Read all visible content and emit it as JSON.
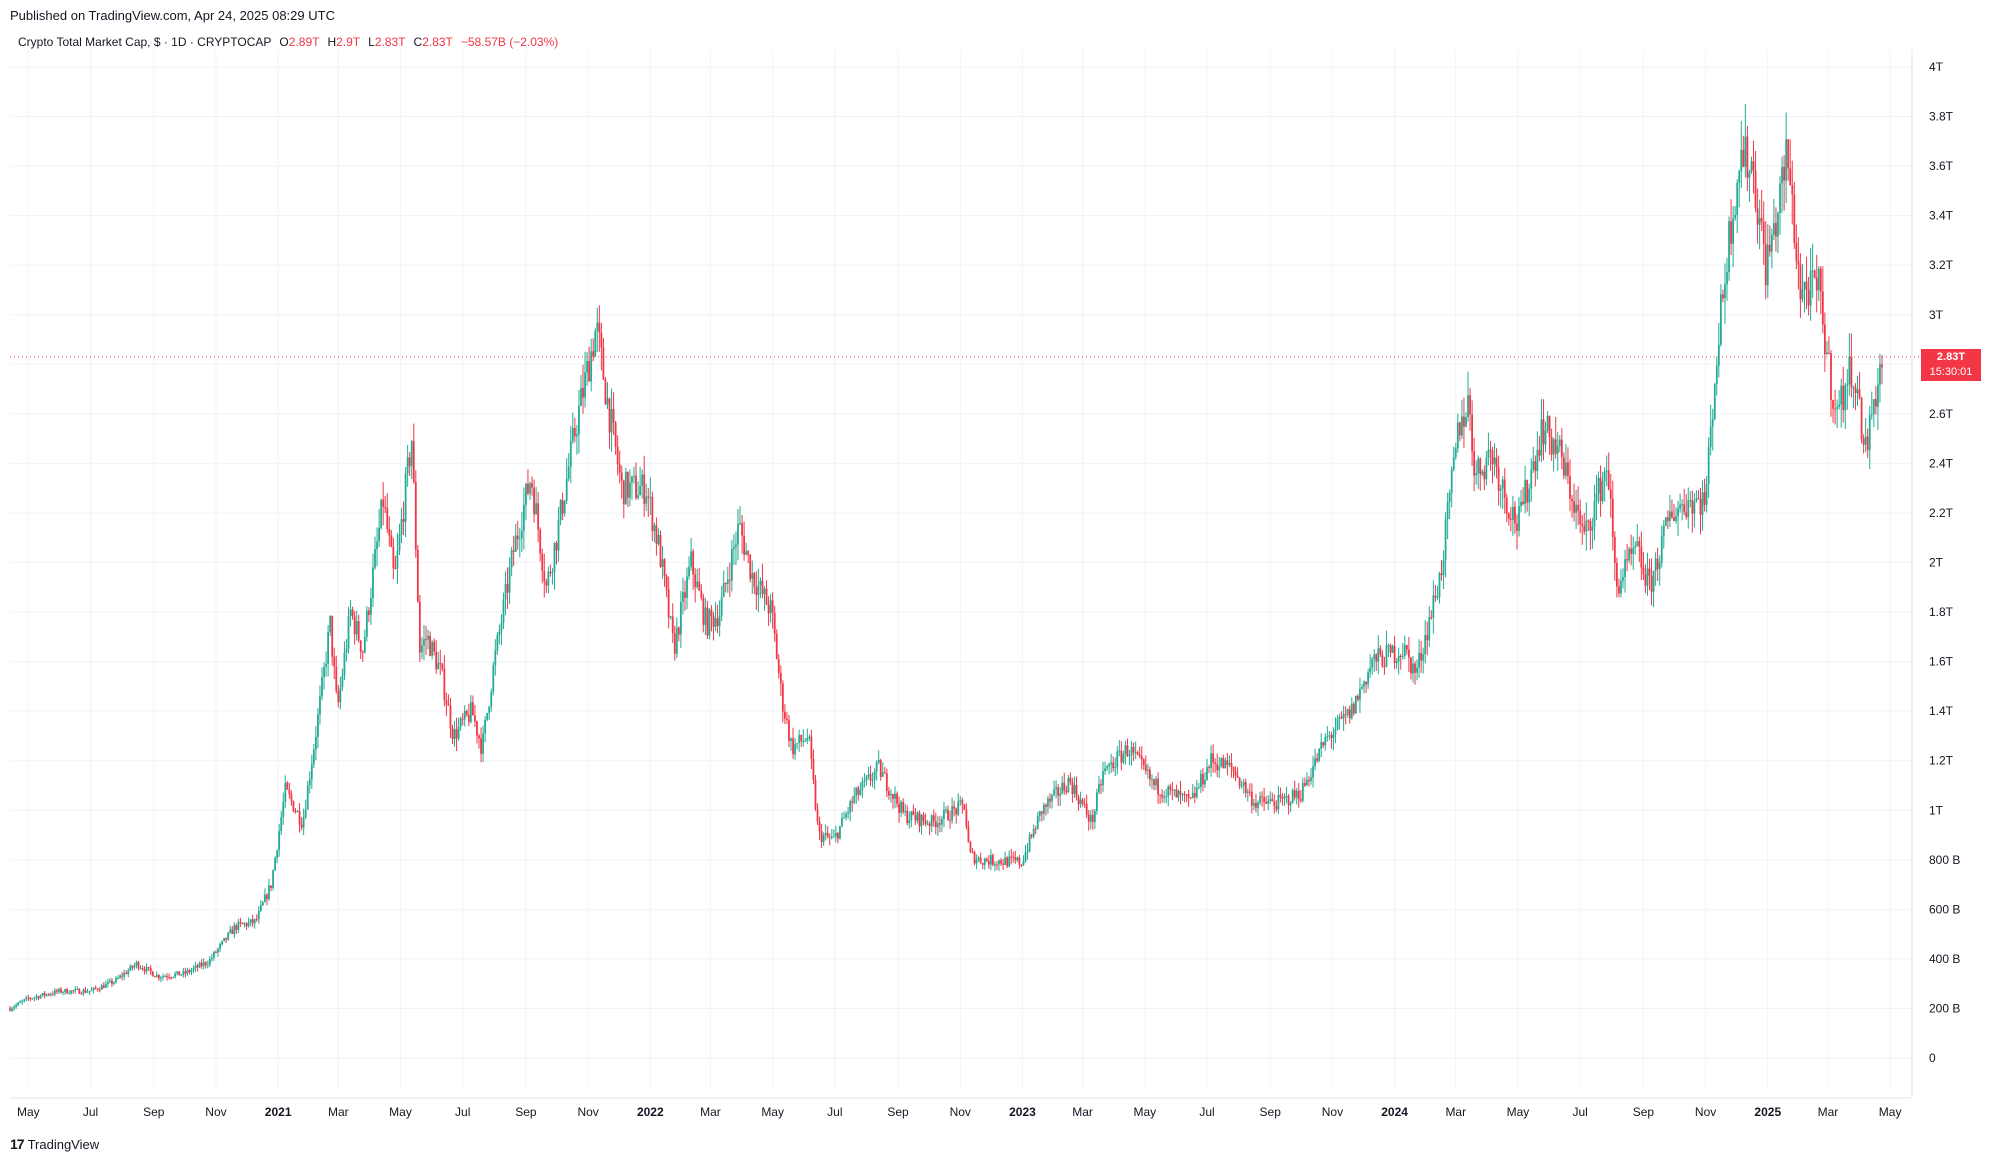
{
  "header": {
    "published": "Published on TradingView.com, Apr 24, 2025 08:29 UTC"
  },
  "legend": {
    "symbol": "Crypto Total Market Cap, $ · 1D · CRYPTOCAP",
    "open_label": "O",
    "open": "2.89T",
    "high_label": "H",
    "high": "2.9T",
    "low_label": "L",
    "low": "2.83T",
    "close_label": "C",
    "close": "2.83T",
    "change": "−58.57B (−2.03%)"
  },
  "price_badge": {
    "price": "2.83T",
    "countdown": "15:30:01"
  },
  "brand": {
    "logo": "17",
    "name": "TradingView"
  },
  "colors": {
    "up": "#22ab94",
    "down": "#f23645",
    "grid": "#f0f3fa",
    "axis_text": "#131722"
  },
  "chart_data": {
    "type": "candlestick",
    "title": "Crypto Total Market Cap",
    "current_price": 2.83,
    "ylim": [
      0,
      4
    ],
    "y_ticks": [
      {
        "v": 4,
        "label": "4T"
      },
      {
        "v": 3.8,
        "label": "3.8T"
      },
      {
        "v": 3.6,
        "label": "3.6T"
      },
      {
        "v": 3.4,
        "label": "3.4T"
      },
      {
        "v": 3.2,
        "label": "3.2T"
      },
      {
        "v": 3.0,
        "label": "3T"
      },
      {
        "v": 2.8,
        "label": "2.8T"
      },
      {
        "v": 2.6,
        "label": "2.6T"
      },
      {
        "v": 2.4,
        "label": "2.4T"
      },
      {
        "v": 2.2,
        "label": "2.2T"
      },
      {
        "v": 2.0,
        "label": "2T"
      },
      {
        "v": 1.8,
        "label": "1.8T"
      },
      {
        "v": 1.6,
        "label": "1.6T"
      },
      {
        "v": 1.4,
        "label": "1.4T"
      },
      {
        "v": 1.2,
        "label": "1.2T"
      },
      {
        "v": 1.0,
        "label": "1T"
      },
      {
        "v": 0.8,
        "label": "800 B"
      },
      {
        "v": 0.6,
        "label": "600 B"
      },
      {
        "v": 0.4,
        "label": "400 B"
      },
      {
        "v": 0.2,
        "label": "200 B"
      },
      {
        "v": 0,
        "label": "0"
      }
    ],
    "x_ticks": [
      {
        "date": "2020-05-01",
        "label": "May",
        "bold": false
      },
      {
        "date": "2020-07-01",
        "label": "Jul",
        "bold": false
      },
      {
        "date": "2020-09-01",
        "label": "Sep",
        "bold": false
      },
      {
        "date": "2020-11-01",
        "label": "Nov",
        "bold": false
      },
      {
        "date": "2021-01-01",
        "label": "2021",
        "bold": true
      },
      {
        "date": "2021-03-01",
        "label": "Mar",
        "bold": false
      },
      {
        "date": "2021-05-01",
        "label": "May",
        "bold": false
      },
      {
        "date": "2021-07-01",
        "label": "Jul",
        "bold": false
      },
      {
        "date": "2021-09-01",
        "label": "Sep",
        "bold": false
      },
      {
        "date": "2021-11-01",
        "label": "Nov",
        "bold": false
      },
      {
        "date": "2022-01-01",
        "label": "2022",
        "bold": true
      },
      {
        "date": "2022-03-01",
        "label": "Mar",
        "bold": false
      },
      {
        "date": "2022-05-01",
        "label": "May",
        "bold": false
      },
      {
        "date": "2022-07-01",
        "label": "Jul",
        "bold": false
      },
      {
        "date": "2022-09-01",
        "label": "Sep",
        "bold": false
      },
      {
        "date": "2022-11-01",
        "label": "Nov",
        "bold": false
      },
      {
        "date": "2023-01-01",
        "label": "2023",
        "bold": true
      },
      {
        "date": "2023-03-01",
        "label": "Mar",
        "bold": false
      },
      {
        "date": "2023-05-01",
        "label": "May",
        "bold": false
      },
      {
        "date": "2023-07-01",
        "label": "Jul",
        "bold": false
      },
      {
        "date": "2023-09-01",
        "label": "Sep",
        "bold": false
      },
      {
        "date": "2023-11-01",
        "label": "Nov",
        "bold": false
      },
      {
        "date": "2024-01-01",
        "label": "2024",
        "bold": true
      },
      {
        "date": "2024-03-01",
        "label": "Mar",
        "bold": false
      },
      {
        "date": "2024-05-01",
        "label": "May",
        "bold": false
      },
      {
        "date": "2024-07-01",
        "label": "Jul",
        "bold": false
      },
      {
        "date": "2024-09-01",
        "label": "Sep",
        "bold": false
      },
      {
        "date": "2024-11-01",
        "label": "Nov",
        "bold": false
      },
      {
        "date": "2025-01-01",
        "label": "2025",
        "bold": true
      },
      {
        "date": "2025-03-01",
        "label": "Mar",
        "bold": false
      },
      {
        "date": "2025-05-01",
        "label": "May",
        "bold": false
      }
    ],
    "series": [
      {
        "name": "Crypto Total Market Cap",
        "points": [
          {
            "date": "2020-04-13",
            "close": 0.2
          },
          {
            "date": "2020-05-01",
            "close": 0.24
          },
          {
            "date": "2020-06-01",
            "close": 0.27
          },
          {
            "date": "2020-07-01",
            "close": 0.27
          },
          {
            "date": "2020-07-25",
            "close": 0.31
          },
          {
            "date": "2020-08-15",
            "close": 0.38
          },
          {
            "date": "2020-09-05",
            "close": 0.33
          },
          {
            "date": "2020-10-01",
            "close": 0.34
          },
          {
            "date": "2020-10-25",
            "close": 0.39
          },
          {
            "date": "2020-11-20",
            "close": 0.53
          },
          {
            "date": "2020-12-10",
            "close": 0.55
          },
          {
            "date": "2020-12-25",
            "close": 0.7
          },
          {
            "date": "2021-01-08",
            "close": 1.08
          },
          {
            "date": "2021-01-25",
            "close": 0.95
          },
          {
            "date": "2021-02-10",
            "close": 1.4
          },
          {
            "date": "2021-02-21",
            "close": 1.75
          },
          {
            "date": "2021-02-28",
            "close": 1.4
          },
          {
            "date": "2021-03-13",
            "close": 1.8
          },
          {
            "date": "2021-03-25",
            "close": 1.65
          },
          {
            "date": "2021-04-14",
            "close": 2.25
          },
          {
            "date": "2021-04-25",
            "close": 1.92
          },
          {
            "date": "2021-05-12",
            "close": 2.5
          },
          {
            "date": "2021-05-20",
            "close": 1.65
          },
          {
            "date": "2021-05-27",
            "close": 1.7
          },
          {
            "date": "2021-06-10",
            "close": 1.55
          },
          {
            "date": "2021-06-22",
            "close": 1.3
          },
          {
            "date": "2021-07-10",
            "close": 1.4
          },
          {
            "date": "2021-07-20",
            "close": 1.25
          },
          {
            "date": "2021-08-01",
            "close": 1.6
          },
          {
            "date": "2021-08-20",
            "close": 2.05
          },
          {
            "date": "2021-09-06",
            "close": 2.35
          },
          {
            "date": "2021-09-21",
            "close": 1.9
          },
          {
            "date": "2021-10-01",
            "close": 2.1
          },
          {
            "date": "2021-10-20",
            "close": 2.55
          },
          {
            "date": "2021-11-09",
            "close": 2.95
          },
          {
            "date": "2021-11-20",
            "close": 2.65
          },
          {
            "date": "2021-12-04",
            "close": 2.3
          },
          {
            "date": "2021-12-28",
            "close": 2.3
          },
          {
            "date": "2022-01-10",
            "close": 2.05
          },
          {
            "date": "2022-01-24",
            "close": 1.65
          },
          {
            "date": "2022-02-10",
            "close": 2.0
          },
          {
            "date": "2022-02-25",
            "close": 1.75
          },
          {
            "date": "2022-03-10",
            "close": 1.8
          },
          {
            "date": "2022-03-29",
            "close": 2.15
          },
          {
            "date": "2022-04-11",
            "close": 1.95
          },
          {
            "date": "2022-04-30",
            "close": 1.8
          },
          {
            "date": "2022-05-10",
            "close": 1.45
          },
          {
            "date": "2022-05-20",
            "close": 1.25
          },
          {
            "date": "2022-06-05",
            "close": 1.3
          },
          {
            "date": "2022-06-15",
            "close": 0.9
          },
          {
            "date": "2022-06-30",
            "close": 0.88
          },
          {
            "date": "2022-07-20",
            "close": 1.05
          },
          {
            "date": "2022-08-13",
            "close": 1.17
          },
          {
            "date": "2022-09-07",
            "close": 0.98
          },
          {
            "date": "2022-10-05",
            "close": 0.95
          },
          {
            "date": "2022-11-05",
            "close": 1.02
          },
          {
            "date": "2022-11-10",
            "close": 0.82
          },
          {
            "date": "2022-11-20",
            "close": 0.8
          },
          {
            "date": "2022-12-31",
            "close": 0.79
          },
          {
            "date": "2023-01-20",
            "close": 1.0
          },
          {
            "date": "2023-02-16",
            "close": 1.12
          },
          {
            "date": "2023-03-10",
            "close": 0.95
          },
          {
            "date": "2023-03-21",
            "close": 1.15
          },
          {
            "date": "2023-04-15",
            "close": 1.25
          },
          {
            "date": "2023-05-10",
            "close": 1.1
          },
          {
            "date": "2023-06-15",
            "close": 1.03
          },
          {
            "date": "2023-07-05",
            "close": 1.2
          },
          {
            "date": "2023-07-25",
            "close": 1.17
          },
          {
            "date": "2023-08-17",
            "close": 1.03
          },
          {
            "date": "2023-09-10",
            "close": 1.03
          },
          {
            "date": "2023-10-01",
            "close": 1.07
          },
          {
            "date": "2023-10-25",
            "close": 1.28
          },
          {
            "date": "2023-11-20",
            "close": 1.4
          },
          {
            "date": "2023-12-10",
            "close": 1.6
          },
          {
            "date": "2024-01-10",
            "close": 1.65
          },
          {
            "date": "2024-01-22",
            "close": 1.55
          },
          {
            "date": "2024-02-15",
            "close": 1.95
          },
          {
            "date": "2024-03-04",
            "close": 2.55
          },
          {
            "date": "2024-03-14",
            "close": 2.65
          },
          {
            "date": "2024-03-20",
            "close": 2.35
          },
          {
            "date": "2024-04-05",
            "close": 2.45
          },
          {
            "date": "2024-04-20",
            "close": 2.25
          },
          {
            "date": "2024-05-01",
            "close": 2.15
          },
          {
            "date": "2024-05-25",
            "close": 2.55
          },
          {
            "date": "2024-06-10",
            "close": 2.45
          },
          {
            "date": "2024-07-05",
            "close": 2.1
          },
          {
            "date": "2024-07-28",
            "close": 2.4
          },
          {
            "date": "2024-08-05",
            "close": 1.9
          },
          {
            "date": "2024-08-25",
            "close": 2.05
          },
          {
            "date": "2024-09-07",
            "close": 1.9
          },
          {
            "date": "2024-09-28",
            "close": 2.2
          },
          {
            "date": "2024-10-15",
            "close": 2.25
          },
          {
            "date": "2024-11-01",
            "close": 2.25
          },
          {
            "date": "2024-11-10",
            "close": 2.75
          },
          {
            "date": "2024-11-22",
            "close": 3.25
          },
          {
            "date": "2024-12-05",
            "close": 3.65
          },
          {
            "date": "2024-12-17",
            "close": 3.6
          },
          {
            "date": "2024-12-30",
            "close": 3.2
          },
          {
            "date": "2025-01-08",
            "close": 3.35
          },
          {
            "date": "2025-01-20",
            "close": 3.65
          },
          {
            "date": "2025-02-02",
            "close": 3.1
          },
          {
            "date": "2025-02-20",
            "close": 3.1
          },
          {
            "date": "2025-03-03",
            "close": 2.75
          },
          {
            "date": "2025-03-10",
            "close": 2.6
          },
          {
            "date": "2025-03-25",
            "close": 2.8
          },
          {
            "date": "2025-04-07",
            "close": 2.45
          },
          {
            "date": "2025-04-15",
            "close": 2.65
          },
          {
            "date": "2025-04-24",
            "close": 2.83
          }
        ]
      }
    ]
  }
}
